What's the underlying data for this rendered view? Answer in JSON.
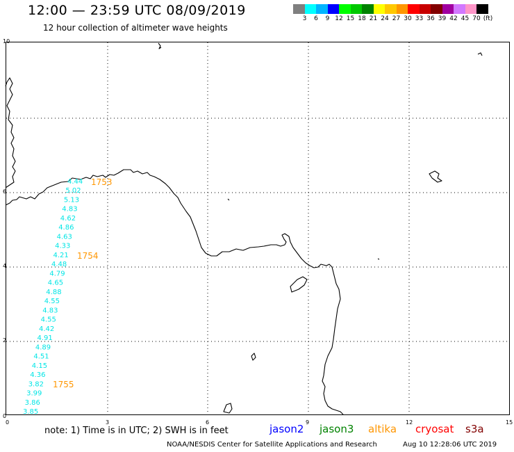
{
  "header": {
    "title": "12:00 — 23:59 UTC 08/09/2019",
    "subtitle": "12 hour collection of altimeter wave heights"
  },
  "legend": {
    "colors": [
      "#7f7f7f",
      "#00ffff",
      "#00b4ff",
      "#0000ff",
      "#00ff00",
      "#00c800",
      "#008200",
      "#ffff00",
      "#ffc800",
      "#ff9600",
      "#ff0000",
      "#c80000",
      "#820000",
      "#a000a0",
      "#d278ff",
      "#ff96c8",
      "#000000"
    ],
    "labels": [
      "3",
      "6",
      "9",
      "12",
      "15",
      "18",
      "21",
      "24",
      "27",
      "30",
      "33",
      "36",
      "39",
      "42",
      "45",
      "70",
      "(ft)"
    ]
  },
  "axes": {
    "x_ticks": [
      "0",
      "3",
      "6",
      "9",
      "12",
      "15"
    ],
    "y_ticks": [
      "10",
      "6",
      "4",
      "2",
      "0"
    ]
  },
  "wave_heights": {
    "color": "#00e5e5",
    "values": [
      "4.44",
      "5.02",
      "5.13",
      "4.83",
      "4.62",
      "4.86",
      "4.63",
      "4.33",
      "4.21",
      "4.48",
      "4.79",
      "4.65",
      "4.88",
      "4.55",
      "4.83",
      "4.55",
      "4.42",
      "4.91",
      "4.89",
      "4.51",
      "4.15",
      "4.36",
      "3.82",
      "3.99",
      "3.86",
      "3.85"
    ]
  },
  "time_labels": {
    "color": "#ff9600",
    "values": [
      "1753",
      "1754",
      "1755"
    ]
  },
  "footer": {
    "note": "note:  1) Time is in UTC;  2) SWH is in feet",
    "satellites": [
      {
        "name": "jason2",
        "color": "#0000ff"
      },
      {
        "name": "jason3",
        "color": "#008200"
      },
      {
        "name": "altika",
        "color": "#ff9600"
      },
      {
        "name": "cryosat",
        "color": "#ff0000"
      },
      {
        "name": "s3a",
        "color": "#820000"
      }
    ],
    "credit": "NOAA/NESDIS Center for Satellite Applications and Research",
    "generated": "Aug 10 12:28:06 UTC 2019"
  }
}
